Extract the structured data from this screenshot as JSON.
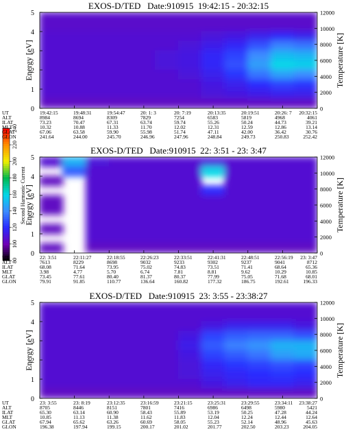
{
  "colorbar": {
    "label": "Second Harmonic Current",
    "zlim": [
      80,
      240
    ],
    "ticks": [
      80,
      100,
      120,
      140,
      160,
      180,
      200,
      220,
      240
    ],
    "colors": [
      "#000000",
      "#6e00b4",
      "#2a2aff",
      "#3c8cff",
      "#00d8e8",
      "#00b850",
      "#f0f000",
      "#ff9000",
      "#ff0000"
    ]
  },
  "chart_data": [
    {
      "type": "heatmap",
      "title": "EXOS-D/TED   Date:910915  19:42:15 - 20:32:15",
      "ylabel": "Energy [eV]",
      "y2label": "Temperature [K]",
      "ylim": [
        0,
        5
      ],
      "yticks": [
        0,
        1,
        2,
        3,
        4,
        5
      ],
      "y2lim": [
        0,
        12000
      ],
      "y2ticks": [
        0,
        2000,
        4000,
        6000,
        8000,
        10000,
        12000
      ],
      "z": [
        [
          106,
          106,
          106,
          106,
          106,
          106,
          106,
          106,
          106,
          106,
          106,
          106
        ],
        [
          106,
          106,
          106,
          106,
          106,
          106,
          106,
          106,
          106,
          106,
          106,
          106
        ],
        [
          108,
          108,
          108,
          108,
          108,
          108,
          108,
          110,
          112,
          115,
          118,
          115
        ],
        [
          108,
          108,
          108,
          108,
          108,
          108,
          110,
          114,
          118,
          128,
          138,
          135
        ],
        [
          108,
          108,
          108,
          108,
          108,
          110,
          112,
          118,
          125,
          140,
          152,
          150
        ],
        [
          108,
          108,
          108,
          108,
          108,
          110,
          112,
          118,
          128,
          145,
          160,
          158
        ],
        [
          108,
          108,
          108,
          108,
          108,
          108,
          110,
          115,
          122,
          135,
          145,
          140
        ],
        [
          108,
          108,
          108,
          108,
          108,
          108,
          108,
          112,
          115,
          120,
          125,
          122
        ],
        [
          108,
          108,
          108,
          108,
          108,
          108,
          108,
          110,
          112,
          114,
          116,
          115
        ],
        [
          104,
          104,
          104,
          104,
          104,
          104,
          104,
          104,
          104,
          104,
          104,
          104
        ]
      ],
      "table": {
        "row_labels": [
          "UT",
          "ALT",
          "ILAT",
          "MLT",
          "GLAT",
          "GLON"
        ],
        "rows": [
          [
            "19:42:15",
            "19:48:31",
            "19:54:47",
            "20: 1: 3",
            "20: 7:19",
            "20:13:35",
            "20:19:51",
            "20:26: 7",
            "20:32:15"
          ],
          [
            "8984",
            "8694",
            "8309",
            "7829",
            "7254",
            "6583",
            "5819",
            "4968",
            "4061"
          ],
          [
            "73.23",
            "70.47",
            "67.31",
            "63.74",
            "59.74",
            "55.26",
            "50.24",
            "44.73",
            "39.21"
          ],
          [
            "10.32",
            "10.88",
            "11.33",
            "11.70",
            "12.02",
            "12.31",
            "12.59",
            "12.86",
            "13.14"
          ],
          [
            "67.06",
            "63.58",
            "59.90",
            "55.98",
            "51.74",
            "47.11",
            "42.00",
            "36.42",
            "30.76"
          ],
          [
            "241.64",
            "244.00",
            "245.70",
            "246.96",
            "247.96",
            "248.84",
            "249.73",
            "250.83",
            "252.42"
          ]
        ]
      }
    },
    {
      "type": "heatmap",
      "title": "EXOS-D/TED   Date:910915  22: 3:51 - 23: 3:47",
      "ylabel": "Energy [eV]",
      "y2label": "Temperature [K]",
      "ylim": [
        0,
        5
      ],
      "yticks": [
        0,
        1,
        2,
        3,
        4,
        5
      ],
      "y2lim": [
        0,
        12000
      ],
      "y2ticks": [
        0,
        2000,
        4000,
        6000,
        8000,
        10000,
        12000
      ],
      "z": [
        [
          108,
          150,
          110,
          108,
          108,
          108,
          108,
          110,
          108,
          108,
          108,
          108
        ],
        [
          null,
          130,
          108,
          108,
          108,
          108,
          108,
          160,
          108,
          108,
          108,
          108
        ],
        [
          104,
          null,
          108,
          108,
          108,
          108,
          108,
          null,
          108,
          108,
          108,
          108
        ],
        [
          null,
          null,
          108,
          108,
          108,
          108,
          108,
          120,
          108,
          108,
          108,
          108
        ],
        [
          104,
          null,
          108,
          108,
          108,
          108,
          108,
          108,
          108,
          108,
          108,
          108
        ],
        [
          104,
          null,
          108,
          108,
          108,
          108,
          108,
          108,
          108,
          108,
          108,
          108
        ],
        [
          null,
          null,
          108,
          108,
          108,
          108,
          108,
          108,
          108,
          108,
          108,
          108
        ],
        [
          104,
          null,
          108,
          108,
          108,
          108,
          108,
          108,
          108,
          108,
          108,
          108
        ],
        [
          null,
          null,
          108,
          108,
          108,
          108,
          108,
          108,
          108,
          108,
          108,
          108
        ],
        [
          104,
          null,
          104,
          104,
          104,
          104,
          104,
          104,
          104,
          104,
          104,
          104
        ]
      ],
      "table": {
        "row_labels": [
          "UT",
          "ALT",
          "ILAT",
          "MLT",
          "GLAT",
          "GLON"
        ],
        "rows": [
          [
            "22: 3:51",
            "22:11:27",
            "22:18:55",
            "22:26:23",
            "22:33:51",
            "22:41:31",
            "22:48:51",
            "22:56:19",
            "23: 3:47"
          ],
          [
            "7613",
            "8229",
            "8698",
            "9032",
            "9233",
            "9302",
            "9237",
            "9041",
            "8712"
          ],
          [
            "68.08",
            "71.64",
            "73.95",
            "75.02",
            "74.83",
            "73.51",
            "71.41",
            "68.64",
            "65.36"
          ],
          [
            "3.98",
            "4.77",
            "5.70",
            "6.74",
            "7.81",
            "8.81",
            "9.62",
            "10.29",
            "10.85"
          ],
          [
            "73.45",
            "77.61",
            "80.40",
            "81.37",
            "80.37",
            "77.99",
            "75.05",
            "71.68",
            "68.01"
          ],
          [
            "79.91",
            "91.85",
            "110.77",
            "136.64",
            "160.82",
            "177.32",
            "186.75",
            "192.61",
            "196.33"
          ]
        ]
      }
    },
    {
      "type": "heatmap",
      "title": "EXOS-D/TED   Date:910915  23: 3:55 - 23:38:27",
      "ylabel": "Energy [eV]",
      "y2label": "Temperature [K]",
      "ylim": [
        0,
        5
      ],
      "yticks": [
        0,
        1,
        2,
        3,
        4,
        5
      ],
      "y2lim": [
        0,
        12000
      ],
      "y2ticks": [
        0,
        2000,
        4000,
        6000,
        8000,
        10000,
        12000
      ],
      "z": [
        [
          108,
          108,
          108,
          108,
          108,
          108,
          108,
          108,
          108,
          108,
          108,
          108
        ],
        [
          108,
          108,
          108,
          108,
          108,
          108,
          108,
          108,
          108,
          108,
          108,
          108
        ],
        [
          108,
          108,
          108,
          108,
          108,
          108,
          108,
          112,
          115,
          115,
          115,
          112
        ],
        [
          108,
          108,
          108,
          108,
          108,
          108,
          112,
          125,
          130,
          132,
          132,
          128
        ],
        [
          108,
          108,
          108,
          108,
          108,
          108,
          114,
          130,
          138,
          142,
          150,
          150
        ],
        [
          108,
          108,
          108,
          108,
          108,
          108,
          112,
          125,
          130,
          135,
          145,
          148
        ],
        [
          108,
          108,
          108,
          108,
          108,
          108,
          110,
          118,
          122,
          125,
          128,
          125
        ],
        [
          108,
          108,
          108,
          108,
          108,
          108,
          110,
          115,
          118,
          120,
          122,
          120
        ],
        [
          108,
          108,
          108,
          108,
          108,
          108,
          108,
          112,
          115,
          118,
          118,
          115
        ],
        [
          104,
          104,
          104,
          104,
          104,
          104,
          104,
          104,
          104,
          104,
          104,
          104
        ]
      ],
      "table": {
        "row_labels": [
          "UT",
          "ALT",
          "ILAT",
          "MLT",
          "GLAT",
          "GLON"
        ],
        "rows": [
          [
            "23: 3:55",
            "23: 8:19",
            "23:12:35",
            "23:16:59",
            "23:21:15",
            "23:25:31",
            "23:29:55",
            "23:34:11",
            "23:38:27"
          ],
          [
            "8705",
            "8446",
            "8151",
            "7801",
            "7416",
            "6986",
            "6498",
            "5980",
            "5421"
          ],
          [
            "65.30",
            "63.14",
            "60.90",
            "58.43",
            "55.89",
            "53.19",
            "50.25",
            "47.28",
            "44.24"
          ],
          [
            "10.85",
            "11.13",
            "11.38",
            "11.62",
            "11.83",
            "12.04",
            "12.24",
            "12.44",
            "12.64"
          ],
          [
            "67.94",
            "65.62",
            "63.26",
            "60.69",
            "58.05",
            "55.23",
            "52.14",
            "48.96",
            "45.63"
          ],
          [
            "196.38",
            "197.94",
            "199.15",
            "200.17",
            "201.02",
            "201.77",
            "202.50",
            "203.23",
            "204.05"
          ]
        ]
      }
    }
  ]
}
